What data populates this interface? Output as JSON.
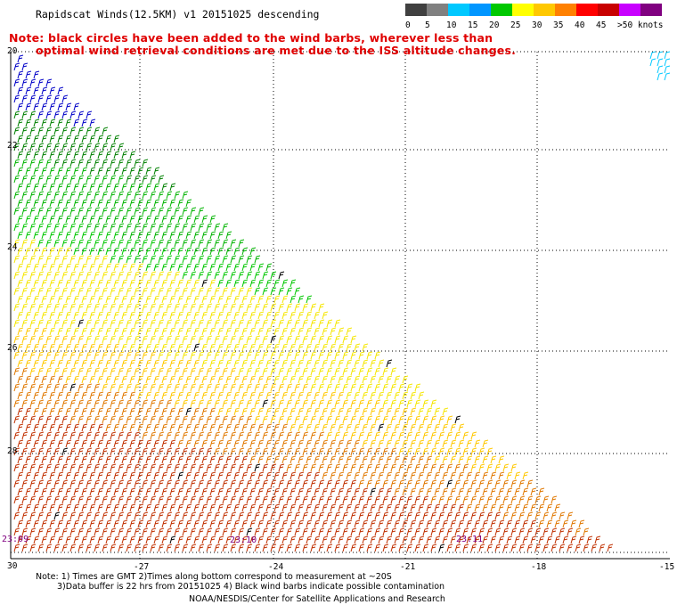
{
  "title": "Rapidscat Winds(12.5KM) v1 20151025 descending",
  "notice": {
    "line1": "Note: black circles have been added to the wind barbs, wherever less than",
    "line2": "optimal wind retrieval conditions are met due to the ISS altitude changes."
  },
  "legend": {
    "labels": [
      "0",
      "5",
      "10",
      "15",
      "20",
      "25",
      "30",
      "35",
      "40",
      "45",
      ">50 knots"
    ],
    "colors": [
      "#404040",
      "#808080",
      "#00c8ff",
      "#0096ff",
      "#00c800",
      "#ffff00",
      "#ffc800",
      "#ff8000",
      "#ff0000",
      "#c80000",
      "#c800ff",
      "#800080"
    ]
  },
  "axes": {
    "lat_labels": [
      "20",
      "22",
      "24",
      "26",
      "28",
      "30"
    ],
    "lon_labels": [
      "-27",
      "-24",
      "-21",
      "-18",
      "-15"
    ]
  },
  "times": [
    "23:09",
    "23:10",
    "23:11"
  ],
  "footer": {
    "line1": "Note: 1) Times are GMT 2)Times along bottom correspond to measurement at ~20S",
    "line2": "3)Data buffer is 22 hrs from 20151025 4) Black wind barbs indicate possible contamination",
    "credit": "NOAA/NESDIS/Center for Satellite Applications and Research"
  }
}
